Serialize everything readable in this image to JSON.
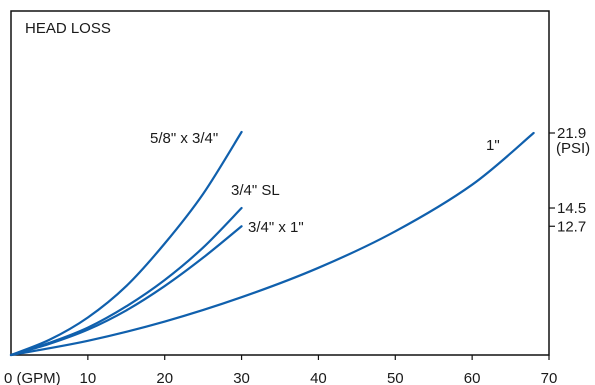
{
  "chart_data": {
    "type": "line",
    "title": "HEAD LOSS",
    "xlabel": "",
    "ylabel": "",
    "xlim": [
      0,
      70
    ],
    "ylim": [
      0,
      21.9
    ],
    "x_tick_labels": [
      {
        "x": 0,
        "label": "0 (GPM)"
      },
      {
        "x": 10,
        "label": "10"
      },
      {
        "x": 20,
        "label": "20"
      },
      {
        "x": 30,
        "label": "30"
      },
      {
        "x": 40,
        "label": "40"
      },
      {
        "x": 50,
        "label": "50"
      },
      {
        "x": 60,
        "label": "60"
      },
      {
        "x": 70,
        "label": "70"
      }
    ],
    "y_tick_labels": [
      {
        "y": 21.9,
        "label": "21.9"
      },
      {
        "y": 14.5,
        "label": "14.5"
      },
      {
        "y": 12.7,
        "label": "12.7"
      }
    ],
    "y_unit": "(PSI)",
    "grid": false,
    "line_color": "#1060ad",
    "series": [
      {
        "name": "5/8\" x 3/4\"",
        "x": [
          0,
          5,
          10,
          15,
          20,
          25,
          30
        ],
        "y": [
          0,
          1.5,
          3.7,
          6.8,
          11.0,
          15.9,
          22.0
        ]
      },
      {
        "name": "3/4\" SL",
        "x": [
          0,
          5,
          10,
          15,
          20,
          25,
          30
        ],
        "y": [
          0,
          1.2,
          2.7,
          4.8,
          7.4,
          10.6,
          14.5
        ]
      },
      {
        "name": "3/4\" x 1\"",
        "x": [
          0,
          5,
          10,
          15,
          20,
          25,
          30
        ],
        "y": [
          0,
          1.1,
          2.5,
          4.4,
          6.8,
          9.6,
          12.7
        ]
      },
      {
        "name": "1\"",
        "x": [
          0,
          10,
          20,
          30,
          40,
          50,
          60,
          68
        ],
        "y": [
          0,
          1.4,
          3.3,
          5.7,
          8.6,
          12.2,
          16.8,
          21.9
        ]
      }
    ]
  }
}
